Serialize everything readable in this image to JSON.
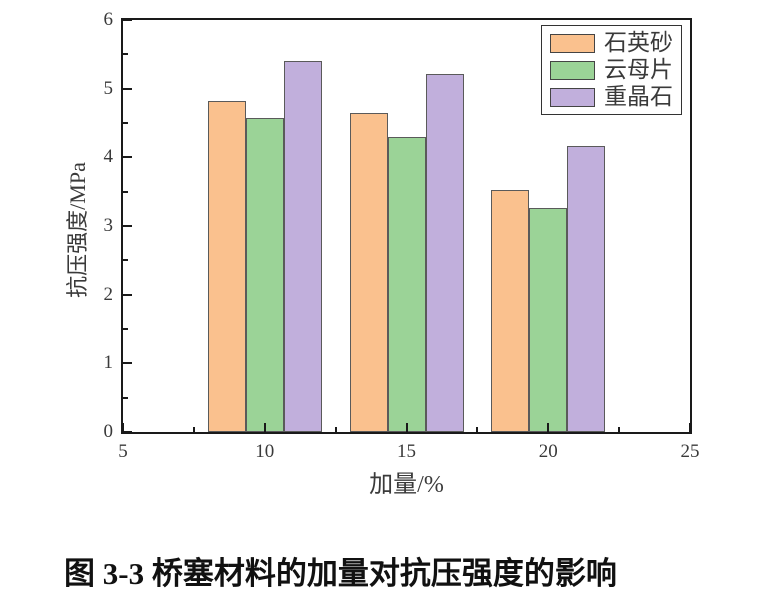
{
  "chart_data": {
    "type": "bar",
    "categories": [
      10,
      15,
      20
    ],
    "series": [
      {
        "name": "石英砂",
        "color": "#FAC18E",
        "values": [
          4.82,
          4.64,
          3.52
        ]
      },
      {
        "name": "云母片",
        "color": "#9BD397",
        "values": [
          4.57,
          4.3,
          3.26
        ]
      },
      {
        "name": "重晶石",
        "color": "#C1AFDC",
        "values": [
          5.4,
          5.22,
          4.17
        ]
      }
    ],
    "title": "",
    "xlabel": "加量/%",
    "ylabel": "抗压强度/MPa",
    "xlim": [
      5,
      25
    ],
    "ylim": [
      0,
      6
    ],
    "x_major_ticks": [
      5,
      10,
      15,
      20,
      25
    ],
    "x_minor_step": 2.5,
    "y_major_ticks": [
      0,
      1,
      2,
      3,
      4,
      5,
      6
    ],
    "y_minor_step": 0.5,
    "grid": false,
    "legend_position": "top-right",
    "bar_edge_color": "#5a5a5a",
    "axis_color": "#1a1a1a"
  },
  "caption": "图 3-3 桥塞材料的加量对抗压强度的影响"
}
